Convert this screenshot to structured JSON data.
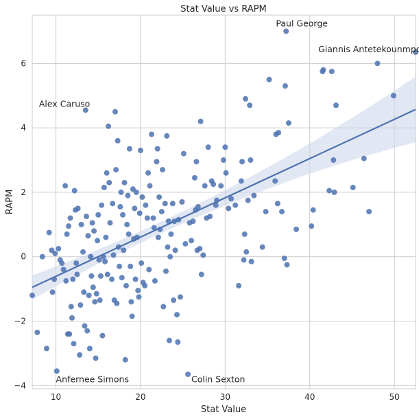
{
  "chart_data": {
    "type": "scatter",
    "title": "Stat Value vs RAPM",
    "xlabel": "Stat Value",
    "ylabel": "RAPM",
    "xlim": [
      7.2,
      52.5
    ],
    "ylim": [
      -4.1,
      7.5
    ],
    "xticks": [
      10,
      20,
      30,
      40,
      50
    ],
    "yticks": [
      -4,
      -2,
      0,
      2,
      4,
      6
    ],
    "grid": true,
    "colors": {
      "points": "#4c72b0",
      "line": "#4c72b0",
      "band": "#c9d4ea",
      "plot_bg": "#ffffff",
      "grid": "#cccccc",
      "frame": "#cccccc"
    },
    "regression": {
      "x": [
        7.2,
        52.5
      ],
      "y": [
        -0.95,
        4.57
      ]
    },
    "annotations": [
      {
        "text": "Paul George",
        "x": 36.0,
        "y": 7.15
      },
      {
        "text": "Giannis Antetekounmpo",
        "x": 41.0,
        "y": 6.35
      },
      {
        "text": "Alex Caruso",
        "x": 8.0,
        "y": 4.65
      },
      {
        "text": "Anfernee Simons",
        "x": 10.0,
        "y": -3.9
      },
      {
        "text": "Colin Sexton",
        "x": 26.0,
        "y": -3.9
      }
    ],
    "points": [
      [
        7.2,
        -1.2
      ],
      [
        7.8,
        -2.35
      ],
      [
        8.4,
        0.0
      ],
      [
        8.9,
        -2.85
      ],
      [
        9.2,
        0.75
      ],
      [
        9.5,
        0.2
      ],
      [
        9.6,
        -1.1
      ],
      [
        9.8,
        -0.7
      ],
      [
        9.9,
        0.1
      ],
      [
        10.1,
        -3.55
      ],
      [
        10.3,
        0.25
      ],
      [
        10.5,
        -0.1
      ],
      [
        10.7,
        -0.2
      ],
      [
        10.9,
        -0.4
      ],
      [
        11.1,
        2.2
      ],
      [
        11.2,
        -0.75
      ],
      [
        11.3,
        0.7
      ],
      [
        11.4,
        -2.4
      ],
      [
        11.5,
        0.95
      ],
      [
        11.6,
        -2.4
      ],
      [
        11.7,
        1.2
      ],
      [
        11.8,
        -1.55
      ],
      [
        11.9,
        -1.9
      ],
      [
        12.0,
        -0.7
      ],
      [
        12.1,
        -2.7
      ],
      [
        12.2,
        2.05
      ],
      [
        12.3,
        1.45
      ],
      [
        12.4,
        -0.2
      ],
      [
        12.5,
        -0.55
      ],
      [
        12.6,
        1.5
      ],
      [
        12.8,
        -3.05
      ],
      [
        12.9,
        -1.5
      ],
      [
        13.0,
        1.0
      ],
      [
        13.2,
        0.15
      ],
      [
        13.3,
        -1.1
      ],
      [
        13.4,
        -2.15
      ],
      [
        13.5,
        4.55
      ],
      [
        13.6,
        1.25
      ],
      [
        13.7,
        -2.3
      ],
      [
        13.8,
        0.65
      ],
      [
        13.9,
        -1.2
      ],
      [
        14.0,
        -2.85
      ],
      [
        14.1,
        0.0
      ],
      [
        14.2,
        -0.6
      ],
      [
        14.3,
        1.05
      ],
      [
        14.4,
        -0.95
      ],
      [
        14.5,
        0.8
      ],
      [
        14.6,
        -1.4
      ],
      [
        14.7,
        -3.15
      ],
      [
        14.8,
        -1.15
      ],
      [
        14.9,
        0.5
      ],
      [
        15.0,
        1.3
      ],
      [
        15.1,
        -0.1
      ],
      [
        15.2,
        -1.35
      ],
      [
        15.3,
        -0.6
      ],
      [
        15.4,
        1.6
      ],
      [
        15.5,
        -2.45
      ],
      [
        15.6,
        0.0
      ],
      [
        15.7,
        2.15
      ],
      [
        15.8,
        -0.15
      ],
      [
        15.9,
        0.6
      ],
      [
        16.0,
        2.6
      ],
      [
        16.1,
        -0.55
      ],
      [
        16.2,
        4.05
      ],
      [
        16.3,
        2.3
      ],
      [
        16.4,
        1.05
      ],
      [
        16.6,
        -0.7
      ],
      [
        16.7,
        1.65
      ],
      [
        16.8,
        0.05
      ],
      [
        16.9,
        -1.35
      ],
      [
        17.0,
        4.5
      ],
      [
        17.1,
        2.7
      ],
      [
        17.2,
        -1.45
      ],
      [
        17.3,
        3.6
      ],
      [
        17.4,
        0.3
      ],
      [
        17.5,
        -0.3
      ],
      [
        17.6,
        1.55
      ],
      [
        17.7,
        2.0
      ],
      [
        17.8,
        -0.65
      ],
      [
        17.9,
        1.3
      ],
      [
        18.0,
        0.2
      ],
      [
        18.1,
        2.3
      ],
      [
        18.2,
        -3.2
      ],
      [
        18.3,
        -0.9
      ],
      [
        18.4,
        1.0
      ],
      [
        18.5,
        1.9
      ],
      [
        18.6,
        0.7
      ],
      [
        18.7,
        3.35
      ],
      [
        18.8,
        -0.3
      ],
      [
        18.9,
        -1.4
      ],
      [
        19.0,
        -1.85
      ],
      [
        19.1,
        2.1
      ],
      [
        19.2,
        0.55
      ],
      [
        19.3,
        1.5
      ],
      [
        19.4,
        -0.7
      ],
      [
        19.5,
        2.0
      ],
      [
        19.6,
        0.6
      ],
      [
        19.7,
        -1.05
      ],
      [
        19.8,
        -1.25
      ],
      [
        19.9,
        1.35
      ],
      [
        20.0,
        3.3
      ],
      [
        20.1,
        -0.2
      ],
      [
        20.2,
        1.85
      ],
      [
        20.3,
        -0.8
      ],
      [
        20.5,
        -0.9
      ],
      [
        20.6,
        1.6
      ],
      [
        20.8,
        1.2
      ],
      [
        20.9,
        2.6
      ],
      [
        21.0,
        -0.4
      ],
      [
        21.1,
        2.2
      ],
      [
        21.3,
        3.8
      ],
      [
        21.5,
        1.2
      ],
      [
        21.6,
        0.9
      ],
      [
        21.7,
        -0.75
      ],
      [
        21.9,
        2.95
      ],
      [
        22.0,
        3.35
      ],
      [
        22.1,
        0.6
      ],
      [
        22.2,
        1.85
      ],
      [
        22.3,
        0.85
      ],
      [
        22.5,
        1.4
      ],
      [
        22.6,
        2.7
      ],
      [
        22.7,
        -1.55
      ],
      [
        22.9,
        1.65
      ],
      [
        23.0,
        -0.45
      ],
      [
        23.1,
        3.75
      ],
      [
        23.2,
        0.3
      ],
      [
        23.3,
        1.1
      ],
      [
        23.4,
        -2.6
      ],
      [
        23.5,
        0.0
      ],
      [
        23.6,
        0.7
      ],
      [
        23.8,
        1.65
      ],
      [
        23.9,
        -1.35
      ],
      [
        24.0,
        1.1
      ],
      [
        24.1,
        0.2
      ],
      [
        24.3,
        -1.8
      ],
      [
        24.4,
        -2.65
      ],
      [
        24.5,
        1.15
      ],
      [
        24.7,
        -1.25
      ],
      [
        24.9,
        1.7
      ],
      [
        25.1,
        3.2
      ],
      [
        25.3,
        0.4
      ],
      [
        25.6,
        -3.65
      ],
      [
        25.8,
        1.05
      ],
      [
        26.0,
        0.5
      ],
      [
        26.2,
        1.1
      ],
      [
        26.4,
        2.45
      ],
      [
        26.5,
        1.45
      ],
      [
        26.6,
        2.95
      ],
      [
        26.7,
        0.2
      ],
      [
        26.8,
        1.55
      ],
      [
        27.0,
        0.25
      ],
      [
        27.1,
        4.2
      ],
      [
        27.2,
        -0.55
      ],
      [
        27.4,
        0.05
      ],
      [
        27.6,
        2.2
      ],
      [
        27.8,
        1.2
      ],
      [
        28.0,
        3.4
      ],
      [
        28.2,
        1.25
      ],
      [
        28.4,
        2.35
      ],
      [
        28.6,
        2.25
      ],
      [
        28.9,
        1.6
      ],
      [
        29.0,
        1.75
      ],
      [
        29.5,
        2.2
      ],
      [
        29.8,
        3.0
      ],
      [
        30.0,
        3.4
      ],
      [
        30.1,
        2.6
      ],
      [
        30.4,
        1.5
      ],
      [
        30.7,
        1.8
      ],
      [
        31.2,
        1.6
      ],
      [
        31.6,
        -0.9
      ],
      [
        31.9,
        2.35
      ],
      [
        32.0,
        2.95
      ],
      [
        32.2,
        -0.1
      ],
      [
        32.3,
        0.7
      ],
      [
        32.4,
        4.9
      ],
      [
        32.5,
        0.15
      ],
      [
        32.7,
        1.75
      ],
      [
        32.9,
        4.7
      ],
      [
        33.0,
        3.0
      ],
      [
        33.1,
        -0.15
      ],
      [
        33.4,
        1.9
      ],
      [
        34.4,
        0.3
      ],
      [
        34.8,
        1.4
      ],
      [
        35.2,
        5.5
      ],
      [
        35.9,
        2.35
      ],
      [
        36.0,
        3.8
      ],
      [
        36.2,
        1.65
      ],
      [
        36.7,
        1.4
      ],
      [
        37.0,
        -0.05
      ],
      [
        37.1,
        5.3
      ],
      [
        37.3,
        -0.25
      ],
      [
        37.5,
        4.15
      ],
      [
        38.4,
        0.85
      ],
      [
        40.2,
        0.95
      ],
      [
        40.4,
        1.45
      ],
      [
        41.5,
        5.75
      ],
      [
        41.6,
        5.8
      ],
      [
        42.3,
        2.05
      ],
      [
        42.6,
        5.75
      ],
      [
        42.8,
        3.0
      ],
      [
        42.9,
        2.0
      ],
      [
        43.1,
        4.7
      ],
      [
        45.1,
        2.15
      ],
      [
        46.4,
        3.05
      ],
      [
        47.0,
        1.4
      ],
      [
        48.0,
        6.0
      ],
      [
        49.9,
        5.0
      ],
      [
        52.5,
        6.35
      ],
      [
        37.2,
        7.0
      ],
      [
        36.3,
        3.85
      ]
    ]
  }
}
